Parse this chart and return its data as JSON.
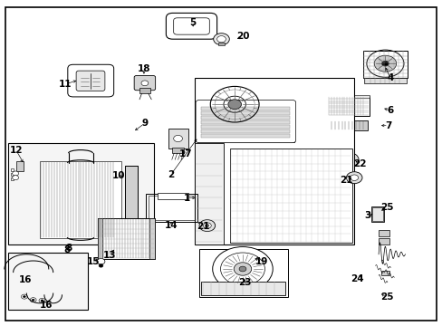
{
  "bg": "#ffffff",
  "lc": "#000000",
  "fig_w": 4.89,
  "fig_h": 3.6,
  "dpi": 100,
  "label_fs": 7.5,
  "parts": {
    "1": [
      0.43,
      0.395,
      0.46,
      0.395
    ],
    "2": [
      0.39,
      0.46,
      0.43,
      0.48
    ],
    "3": [
      0.83,
      0.34,
      0.848,
      0.34
    ],
    "4": [
      0.882,
      0.76,
      0.862,
      0.76
    ],
    "5": [
      0.443,
      0.93,
      0.458,
      0.92
    ],
    "6": [
      0.88,
      0.66,
      0.86,
      0.66
    ],
    "7": [
      0.875,
      0.615,
      0.855,
      0.615
    ],
    "8": [
      0.155,
      0.235,
      0.155,
      0.235
    ],
    "9": [
      0.325,
      0.62,
      0.305,
      0.6
    ],
    "10": [
      0.27,
      0.46,
      0.265,
      0.475
    ],
    "11": [
      0.15,
      0.745,
      0.175,
      0.745
    ],
    "12": [
      0.04,
      0.54,
      0.06,
      0.555
    ],
    "13": [
      0.25,
      0.22,
      0.265,
      0.245
    ],
    "14": [
      0.385,
      0.31,
      0.385,
      0.33
    ],
    "15": [
      0.215,
      0.2,
      0.23,
      0.22
    ],
    "16": [
      0.062,
      0.145,
      0.062,
      0.145
    ],
    "17": [
      0.418,
      0.525,
      0.408,
      0.54
    ],
    "18": [
      0.324,
      0.79,
      0.324,
      0.77
    ],
    "19": [
      0.59,
      0.2,
      0.57,
      0.21
    ],
    "20": [
      0.548,
      0.885,
      0.535,
      0.875
    ],
    "21a": [
      0.78,
      0.45,
      0.8,
      0.458
    ],
    "21b": [
      0.462,
      0.308,
      0.478,
      0.308
    ],
    "22": [
      0.81,
      0.5,
      0.795,
      0.51
    ],
    "23": [
      0.555,
      0.135,
      0.555,
      0.155
    ],
    "24": [
      0.808,
      0.148,
      0.825,
      0.165
    ],
    "25a": [
      0.872,
      0.365,
      0.855,
      0.352
    ],
    "25b": [
      0.872,
      0.09,
      0.855,
      0.105
    ]
  }
}
